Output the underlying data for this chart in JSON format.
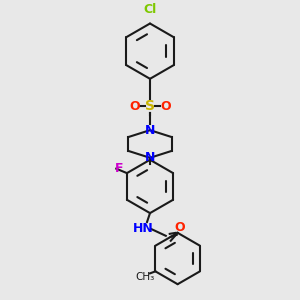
{
  "background_color": "#e8e8e8",
  "bond_color": "#1a1a1a",
  "ring_bond_color": "#1a1a1a",
  "atom_colors": {
    "Cl": "#7ec800",
    "S": "#c8b400",
    "O": "#ff2200",
    "N": "#0000ff",
    "F": "#cc00cc",
    "H": "#1a1a1a",
    "C": "#1a1a1a"
  },
  "figsize": [
    3.0,
    3.0
  ],
  "dpi": 100
}
